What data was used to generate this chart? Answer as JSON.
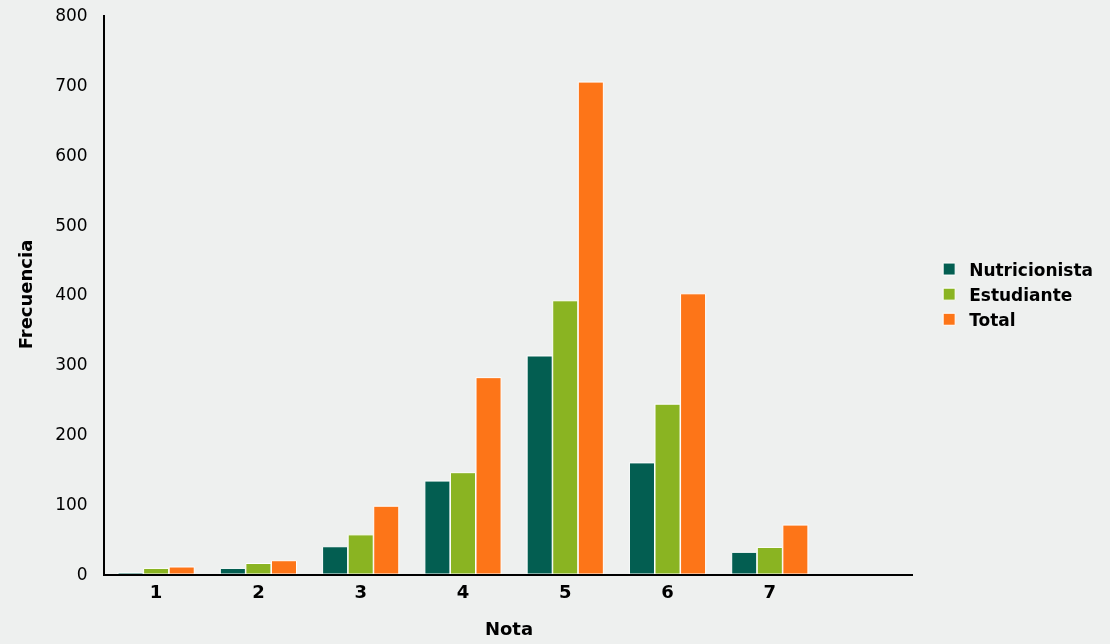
{
  "chart_data": {
    "type": "bar",
    "xlabel": "Nota",
    "ylabel": "Frecuencia",
    "categories": [
      "1",
      "2",
      "3",
      "4",
      "5",
      "6",
      "7"
    ],
    "series": [
      {
        "name": "Nutricionista",
        "color": "#035e51",
        "values": [
          2,
          8,
          39,
          133,
          312,
          159,
          31
        ]
      },
      {
        "name": "Estudiante",
        "color": "#8ab422",
        "values": [
          8,
          15,
          56,
          145,
          391,
          243,
          38
        ]
      },
      {
        "name": "Total",
        "color": "#fd7518",
        "values": [
          10,
          19,
          97,
          281,
          704,
          401,
          70
        ]
      }
    ],
    "ylim": [
      0,
      800
    ],
    "yticks": [
      0,
      100,
      200,
      300,
      400,
      500,
      600,
      700,
      800
    ],
    "grid": false,
    "legend": "right"
  }
}
